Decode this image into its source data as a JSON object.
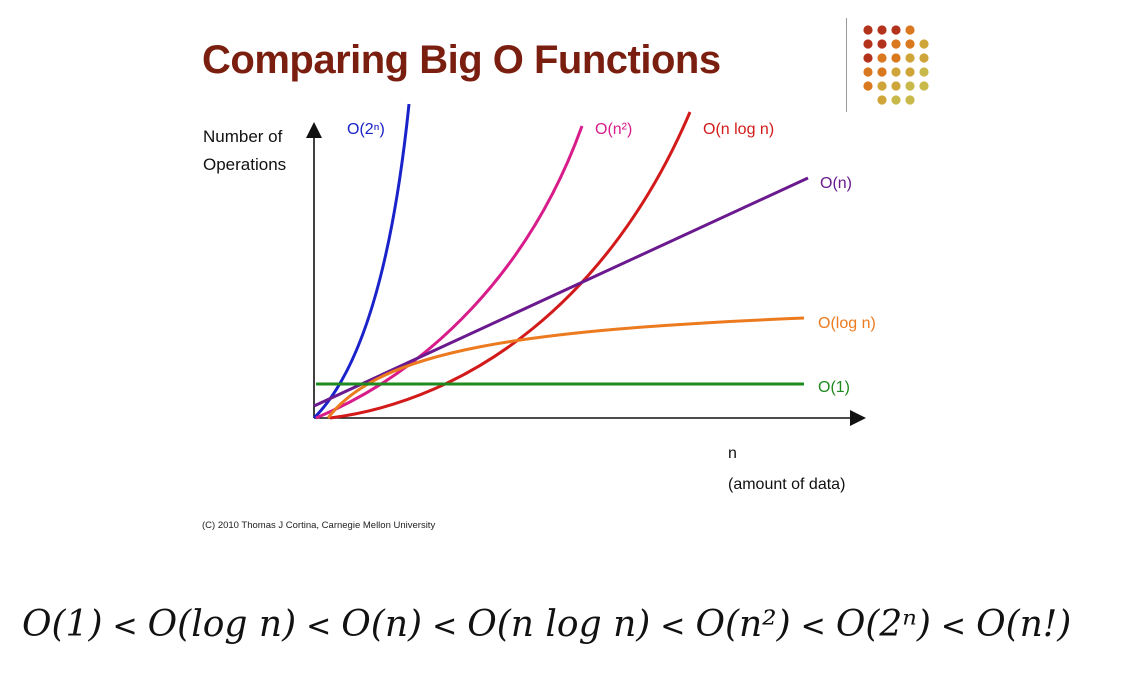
{
  "slide": {
    "title": "Comparing Big O Functions",
    "copyright": "(C) 2010 Thomas J Cortina, Carnegie Mellon University"
  },
  "colors": {
    "title": "#7a1f10",
    "decor_dots": [
      "#b3321c",
      "#d9781e",
      "#cfa53a",
      "#c9b84a"
    ]
  },
  "chart_data": {
    "type": "line",
    "title": "Comparing Big O Functions",
    "ylabel": [
      "Number of",
      "Operations"
    ],
    "xlabel": [
      "n",
      "(amount of data)"
    ],
    "grid": false,
    "legend": "inline labels at line ends",
    "series": [
      {
        "name": "O(2ⁿ)",
        "key": "exp",
        "color": "#1a23c9"
      },
      {
        "name": "O(n²)",
        "key": "n2",
        "color": "#d81d8a"
      },
      {
        "name": "O(n log n)",
        "key": "nlogn",
        "color": "#d31a1a"
      },
      {
        "name": "O(n)",
        "key": "n",
        "color": "#6a1a8e"
      },
      {
        "name": "O(log n)",
        "key": "logn",
        "color": "#ec7a1e"
      },
      {
        "name": "O(1)",
        "key": "const",
        "color": "#1f8a1f"
      }
    ]
  },
  "formula": {
    "terms": [
      "O(1)",
      "O(log n)",
      "O(n)",
      "O(n log n)",
      "O(n²)",
      "O(2ⁿ)",
      "O(n!)"
    ],
    "separator": "<"
  }
}
